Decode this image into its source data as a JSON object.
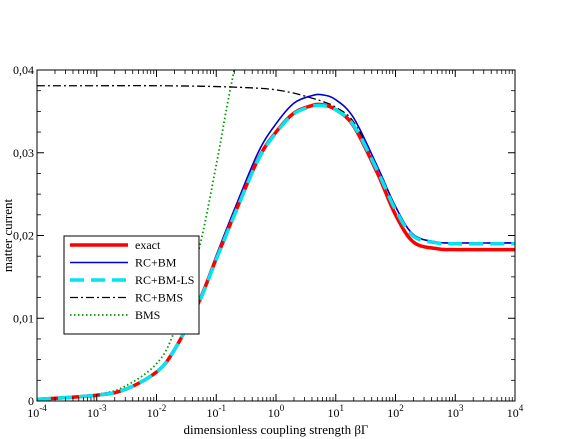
{
  "chart_data": {
    "type": "line",
    "title": "",
    "xlabel": "dimensionless coupling strength βΓ",
    "ylabel": "matter current",
    "xscale": "log",
    "xlim": [
      0.0001,
      10000
    ],
    "ylim": [
      0,
      0.04
    ],
    "x_ticks": [
      {
        "value": 0.0001,
        "base": "10",
        "exp": "-4"
      },
      {
        "value": 0.001,
        "base": "10",
        "exp": "-3"
      },
      {
        "value": 0.01,
        "base": "10",
        "exp": "-2"
      },
      {
        "value": 0.1,
        "base": "10",
        "exp": "-1"
      },
      {
        "value": 1,
        "base": "10",
        "exp": "0"
      },
      {
        "value": 10,
        "base": "10",
        "exp": "1"
      },
      {
        "value": 100,
        "base": "10",
        "exp": "2"
      },
      {
        "value": 1000,
        "base": "10",
        "exp": "3"
      },
      {
        "value": 10000,
        "base": "10",
        "exp": "4"
      }
    ],
    "y_ticks": [
      {
        "value": 0,
        "label": "0"
      },
      {
        "value": 0.01,
        "label": "0,01"
      },
      {
        "value": 0.02,
        "label": "0,02"
      },
      {
        "value": 0.03,
        "label": "0,03"
      },
      {
        "value": 0.04,
        "label": "0,04"
      }
    ],
    "grid": false,
    "legend_position": "center-left",
    "series": [
      {
        "name": "exact",
        "color": "#ff0000",
        "style": "solid-thick",
        "x": [
          0.0001,
          0.001,
          0.003,
          0.01,
          0.02,
          0.05,
          0.1,
          0.2,
          0.5,
          1,
          2,
          4,
          6,
          10,
          20,
          50,
          100,
          200,
          500,
          1000,
          10000
        ],
        "y": [
          0.0002,
          0.0007,
          0.0014,
          0.0035,
          0.0062,
          0.0118,
          0.0172,
          0.0225,
          0.0292,
          0.0325,
          0.0348,
          0.0357,
          0.0358,
          0.0352,
          0.0332,
          0.0275,
          0.0225,
          0.0192,
          0.0184,
          0.0183,
          0.0183
        ]
      },
      {
        "name": "RC+BM",
        "color": "#0000cc",
        "style": "solid",
        "x": [
          0.0001,
          0.001,
          0.003,
          0.01,
          0.02,
          0.05,
          0.1,
          0.2,
          0.5,
          1,
          2,
          4,
          6,
          10,
          20,
          50,
          100,
          200,
          500,
          1000,
          10000
        ],
        "y": [
          0.0002,
          0.0007,
          0.0014,
          0.0035,
          0.0063,
          0.012,
          0.0176,
          0.0231,
          0.03,
          0.0335,
          0.036,
          0.0369,
          0.037,
          0.0364,
          0.0342,
          0.0283,
          0.0235,
          0.0201,
          0.0192,
          0.0191,
          0.0191
        ]
      },
      {
        "name": "RC+BM-LS",
        "color": "#00e5ee",
        "style": "dashed-thick",
        "x": [
          0.0001,
          0.001,
          0.003,
          0.01,
          0.02,
          0.05,
          0.1,
          0.2,
          0.5,
          1,
          2,
          4,
          6,
          10,
          20,
          50,
          100,
          200,
          500,
          1000,
          10000
        ],
        "y": [
          0.0002,
          0.0007,
          0.0014,
          0.0035,
          0.0062,
          0.0117,
          0.0171,
          0.0224,
          0.0291,
          0.0324,
          0.0347,
          0.0356,
          0.0357,
          0.0352,
          0.0333,
          0.0278,
          0.0231,
          0.0199,
          0.0191,
          0.019,
          0.019
        ]
      },
      {
        "name": "RC+BMS",
        "color": "#000000",
        "style": "dashdot",
        "x": [
          0.0001,
          0.001,
          0.01,
          0.1,
          0.5,
          1,
          2,
          4,
          6,
          10,
          20,
          50,
          100,
          200,
          500,
          1000,
          10000
        ],
        "y": [
          0.0381,
          0.0381,
          0.0381,
          0.038,
          0.0378,
          0.0376,
          0.0372,
          0.0366,
          0.0362,
          0.0355,
          0.0337,
          0.0283,
          0.0235,
          0.0201,
          0.0192,
          0.0191,
          0.0191
        ]
      },
      {
        "name": "BMS",
        "color": "#009900",
        "style": "dotted",
        "x": [
          0.0001,
          0.001,
          0.003,
          0.01,
          0.02,
          0.05,
          0.1,
          0.15,
          0.2
        ],
        "y": [
          0.0002,
          0.0008,
          0.0018,
          0.0045,
          0.0085,
          0.018,
          0.0285,
          0.0355,
          0.04
        ]
      }
    ]
  }
}
